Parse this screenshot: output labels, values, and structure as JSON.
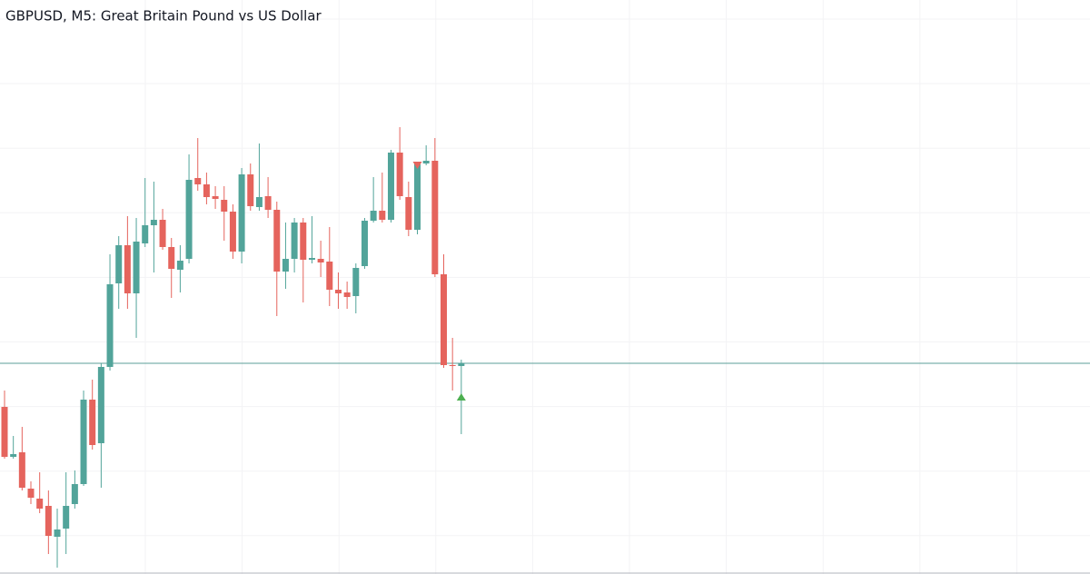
{
  "chart_data": {
    "type": "candlestick",
    "title": "GBPUSD, M5: Great Britain Pound vs US Dollar",
    "ylim": [
      0,
      632
    ],
    "up_color": "#52a49a",
    "down_color": "#e5645d",
    "open": [
      184,
      129,
      134,
      94,
      83,
      75,
      41,
      50,
      77,
      99,
      192,
      144,
      228,
      320,
      362,
      309,
      364,
      384,
      390,
      360,
      335,
      347,
      436,
      429,
      416,
      412,
      399,
      355,
      440,
      404,
      416,
      401,
      333,
      347,
      387,
      346,
      347,
      344,
      313,
      310,
      306,
      339,
      389,
      400,
      390,
      464,
      415,
      379,
      452,
      455,
      330,
      230,
      229
    ],
    "high": [
      202,
      152,
      162,
      102,
      112,
      92,
      72,
      112,
      114,
      202,
      214,
      232,
      352,
      372,
      394,
      392,
      436,
      432,
      402,
      370,
      362,
      462,
      480,
      442,
      427,
      427,
      407,
      447,
      452,
      474,
      437,
      410,
      387,
      392,
      392,
      394,
      367,
      382,
      332,
      322,
      342,
      392,
      437,
      442,
      467,
      492,
      432,
      454,
      472,
      480,
      352,
      260,
      236
    ],
    "low": [
      127,
      127,
      92,
      77,
      67,
      22,
      7,
      22,
      72,
      97,
      137,
      95,
      224,
      292,
      292,
      260,
      360,
      332,
      357,
      304,
      310,
      342,
      422,
      407,
      402,
      367,
      347,
      342,
      400,
      400,
      392,
      284,
      314,
      332,
      299,
      342,
      327,
      295,
      292,
      292,
      287,
      336,
      387,
      387,
      387,
      412,
      372,
      374,
      450,
      327,
      227,
      202,
      154
    ],
    "close": [
      129,
      132,
      95,
      84,
      72,
      42,
      49,
      75,
      99,
      192,
      142,
      228,
      319,
      362,
      309,
      366,
      384,
      390,
      360,
      336,
      345,
      434,
      429,
      415,
      413,
      399,
      355,
      440,
      405,
      415,
      401,
      333,
      347,
      387,
      346,
      348,
      343,
      313,
      309,
      305,
      337,
      389,
      400,
      390,
      464,
      416,
      379,
      452,
      455,
      330,
      230,
      229,
      232
    ],
    "price_line": {
      "value": 232,
      "color": "#5b9f98"
    },
    "markers": [
      {
        "kind": "sell",
        "index": 47,
        "value": 450,
        "color": "#e5645d"
      },
      {
        "kind": "buy",
        "index": 52,
        "value": 195,
        "color": "#4caf50"
      }
    ]
  }
}
